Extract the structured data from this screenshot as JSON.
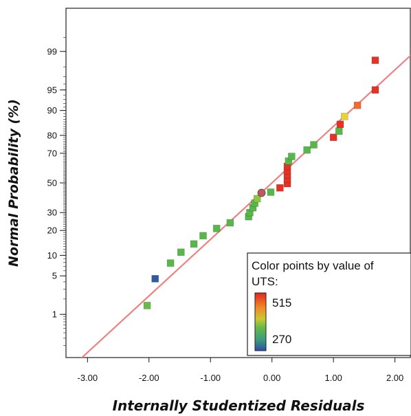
{
  "chart_data": {
    "type": "scatter",
    "title": "",
    "xlabel": "Internally Studentized Residuals",
    "ylabel": "Normal Probability (%)",
    "xlim": [
      -3.35,
      2.25
    ],
    "ylim_probability": [
      0.1,
      99.9
    ],
    "x_scale": "linear",
    "y_scale": "normal-probability",
    "grid": false,
    "x_ticks": [
      {
        "value": -3,
        "label": "-3.00"
      },
      {
        "value": -2,
        "label": "-2.00"
      },
      {
        "value": -1,
        "label": "-1.00"
      },
      {
        "value": 0,
        "label": "0.00"
      },
      {
        "value": 1,
        "label": "1.00"
      },
      {
        "value": 2,
        "label": "2.00"
      }
    ],
    "y_ticks": [
      {
        "value": 1,
        "label": "1"
      },
      {
        "value": 5,
        "label": "5"
      },
      {
        "value": 10,
        "label": "10"
      },
      {
        "value": 20,
        "label": "20"
      },
      {
        "value": 30,
        "label": "30"
      },
      {
        "value": 50,
        "label": "50"
      },
      {
        "value": 70,
        "label": "70"
      },
      {
        "value": 80,
        "label": "80"
      },
      {
        "value": 90,
        "label": "90"
      },
      {
        "value": 95,
        "label": "95"
      },
      {
        "value": 99,
        "label": "99"
      }
    ],
    "reference_line": {
      "color": "#f08080"
    },
    "legend": {
      "title": "Color points by value of UTS:",
      "title_line1": "Color points by value of",
      "title_line2": "UTS:",
      "max_label": "515",
      "min_label": "270",
      "max_label_color": "#e8342a",
      "min_label_color": "#2f4aa8",
      "placement": "bottom-right"
    },
    "colors": {
      "red": "#e53225",
      "orange": "#f26b2d",
      "yellow": "#e8d23a",
      "green": "#5ab94c",
      "blue": "#2d5aa3",
      "marker_circle": "#c05a5a"
    },
    "points": [
      {
        "x": -2.03,
        "y": 1.5,
        "color": "#66bb4a",
        "shape": "square"
      },
      {
        "x": -1.9,
        "y": 4.5,
        "color": "#2d5aa3",
        "shape": "square"
      },
      {
        "x": -1.65,
        "y": 7.8,
        "color": "#58b74a",
        "shape": "square"
      },
      {
        "x": -1.48,
        "y": 11,
        "color": "#58b74a",
        "shape": "square"
      },
      {
        "x": -1.27,
        "y": 14,
        "color": "#58b74a",
        "shape": "square"
      },
      {
        "x": -1.12,
        "y": 17.5,
        "color": "#58b74a",
        "shape": "square"
      },
      {
        "x": -0.9,
        "y": 21,
        "color": "#58b74a",
        "shape": "square"
      },
      {
        "x": -0.68,
        "y": 24,
        "color": "#58b74a",
        "shape": "square"
      },
      {
        "x": -0.38,
        "y": 27.5,
        "color": "#58b74a",
        "shape": "square"
      },
      {
        "x": -0.36,
        "y": 30,
        "color": "#58b74a",
        "shape": "square"
      },
      {
        "x": -0.31,
        "y": 33,
        "color": "#58b74a",
        "shape": "square"
      },
      {
        "x": -0.28,
        "y": 36,
        "color": "#58b74a",
        "shape": "square"
      },
      {
        "x": -0.24,
        "y": 39,
        "color": "#8fc63f",
        "shape": "square"
      },
      {
        "x": -0.17,
        "y": 43,
        "color": "#c05a5a",
        "shape": "circle"
      },
      {
        "x": -0.02,
        "y": 43.5,
        "color": "#58b74a",
        "shape": "square"
      },
      {
        "x": 0.13,
        "y": 46.5,
        "color": "#e53225",
        "shape": "square"
      },
      {
        "x": 0.25,
        "y": 49.5,
        "color": "#e53225",
        "shape": "square"
      },
      {
        "x": 0.25,
        "y": 52.5,
        "color": "#e53225",
        "shape": "square"
      },
      {
        "x": 0.25,
        "y": 55.5,
        "color": "#e53225",
        "shape": "square"
      },
      {
        "x": 0.25,
        "y": 58.5,
        "color": "#e53225",
        "shape": "square"
      },
      {
        "x": 0.25,
        "y": 61.5,
        "color": "#e53225",
        "shape": "square"
      },
      {
        "x": 0.27,
        "y": 65,
        "color": "#58b74a",
        "shape": "square"
      },
      {
        "x": 0.32,
        "y": 68,
        "color": "#58b74a",
        "shape": "square"
      },
      {
        "x": 0.57,
        "y": 72,
        "color": "#58b74a",
        "shape": "square"
      },
      {
        "x": 0.68,
        "y": 75,
        "color": "#58b74a",
        "shape": "square"
      },
      {
        "x": 1.0,
        "y": 79,
        "color": "#e53225",
        "shape": "square"
      },
      {
        "x": 1.09,
        "y": 82,
        "color": "#58b74a",
        "shape": "square"
      },
      {
        "x": 1.11,
        "y": 85,
        "color": "#e53225",
        "shape": "square"
      },
      {
        "x": 1.18,
        "y": 88,
        "color": "#e8d23a",
        "shape": "square"
      },
      {
        "x": 1.39,
        "y": 91.5,
        "color": "#f26b2d",
        "shape": "square"
      },
      {
        "x": 1.68,
        "y": 95,
        "color": "#e53225",
        "shape": "square"
      },
      {
        "x": 1.68,
        "y": 98.5,
        "color": "#e53225",
        "shape": "square"
      }
    ]
  }
}
